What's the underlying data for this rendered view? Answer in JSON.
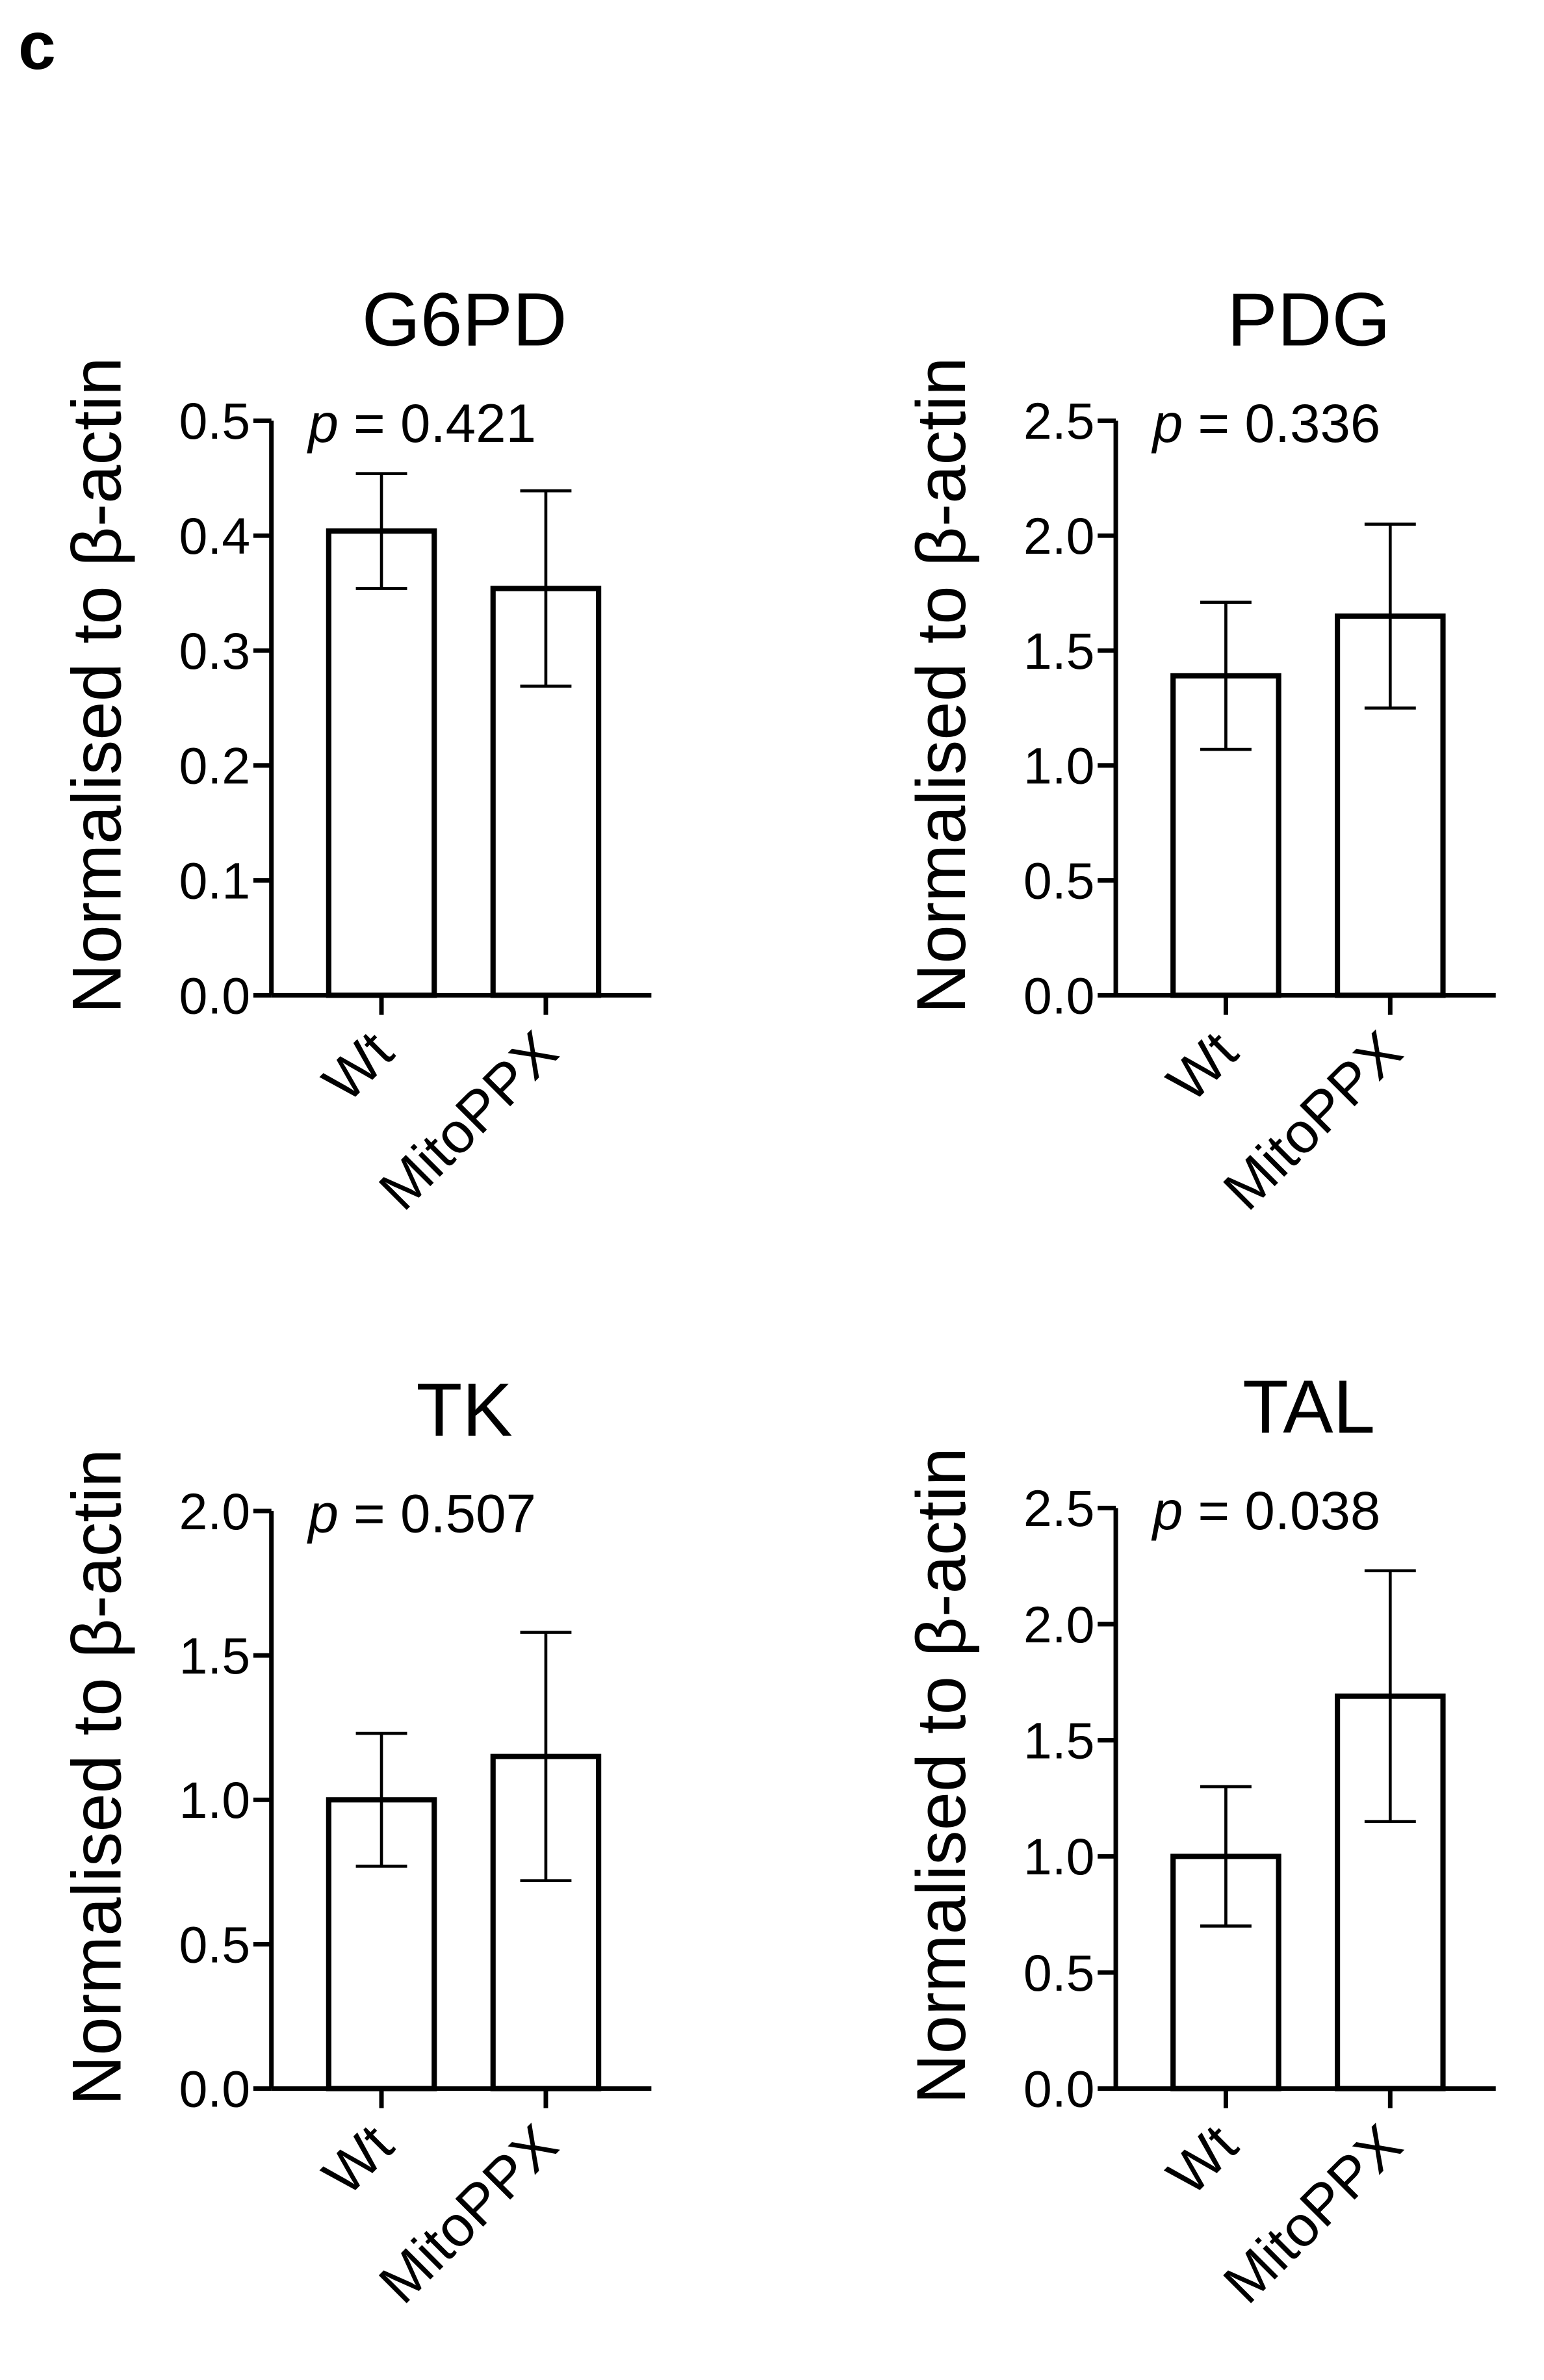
{
  "figure": {
    "panel_label": "c"
  },
  "chart_data": [
    {
      "type": "bar",
      "title": "G6PD",
      "annotation": {
        "prefix": "p",
        "text": " = 0.421"
      },
      "ylabel": "Normalised to β-actin",
      "xlabel": "",
      "categories": [
        "Wt",
        "MitoPPX"
      ],
      "values": [
        0.404,
        0.354
      ],
      "errors": [
        0.05,
        0.085
      ],
      "ylim": [
        0.0,
        0.5
      ],
      "yticks": [
        "0.0",
        "0.1",
        "0.2",
        "0.3",
        "0.4",
        "0.5"
      ],
      "ytick_values": [
        0.0,
        0.1,
        0.2,
        0.3,
        0.4,
        0.5
      ]
    },
    {
      "type": "bar",
      "title": "PDG",
      "annotation": {
        "prefix": "p",
        "text": " = 0.336"
      },
      "ylabel": "Normalised to β-actin",
      "xlabel": "",
      "categories": [
        "Wt",
        "MitoPPX"
      ],
      "values": [
        1.39,
        1.65
      ],
      "errors": [
        0.32,
        0.4
      ],
      "ylim": [
        0.0,
        2.5
      ],
      "yticks": [
        "0.0",
        "0.5",
        "1.0",
        "1.5",
        "2.0",
        "2.5"
      ],
      "ytick_values": [
        0.0,
        0.5,
        1.0,
        1.5,
        2.0,
        2.5
      ]
    },
    {
      "type": "bar",
      "title": "TK",
      "annotation": {
        "prefix": "p",
        "text": " = 0.507"
      },
      "ylabel": "Normalised to β-actin",
      "xlabel": "",
      "categories": [
        "Wt",
        "MitoPPX"
      ],
      "values": [
        1.0,
        1.15
      ],
      "errors": [
        0.23,
        0.43
      ],
      "ylim": [
        0.0,
        2.0
      ],
      "yticks": [
        "0.0",
        "0.5",
        "1.0",
        "1.5",
        "2.0"
      ],
      "ytick_values": [
        0.0,
        0.5,
        1.0,
        1.5,
        2.0
      ]
    },
    {
      "type": "bar",
      "title": "TAL",
      "annotation": {
        "prefix": "p",
        "text": " = 0.038"
      },
      "ylabel": "Normalised to β-actin",
      "xlabel": "",
      "categories": [
        "Wt",
        "MitoPPX"
      ],
      "values": [
        1.0,
        1.69
      ],
      "errors": [
        0.3,
        0.54
      ],
      "ylim": [
        0.0,
        2.5
      ],
      "yticks": [
        "0.0",
        "0.5",
        "1.0",
        "1.5",
        "2.0",
        "2.5"
      ],
      "ytick_values": [
        0.0,
        0.5,
        1.0,
        1.5,
        2.0,
        2.5
      ]
    }
  ]
}
